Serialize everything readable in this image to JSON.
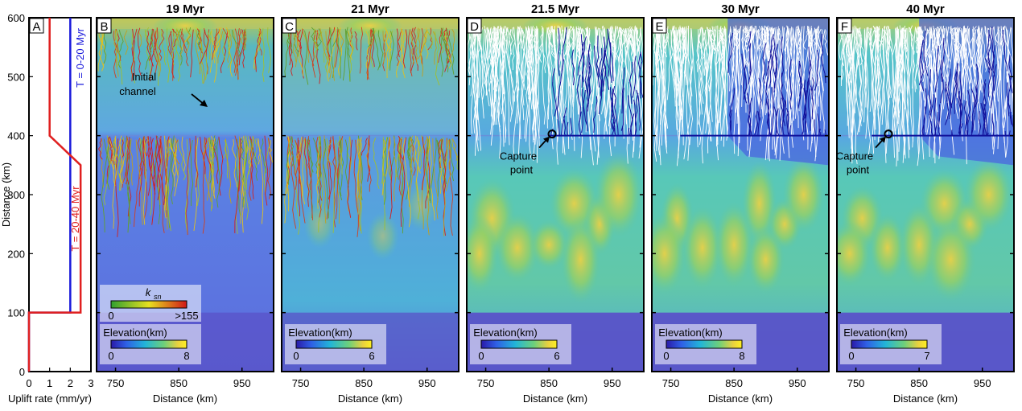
{
  "figure": {
    "panelA": {
      "letter": "A",
      "xlabel": "Uplift rate (mm/yr)",
      "ylabel": "Distance (km)",
      "xticks": [
        "0",
        "1",
        "2",
        "3"
      ],
      "yticks": [
        "0",
        "100",
        "200",
        "300",
        "400",
        "500",
        "600"
      ],
      "label_blue": "T = 0-20 Myr",
      "label_red": "T = 20-40 Myr",
      "colors": {
        "blue": "#1a1adb",
        "red": "#e02020"
      }
    },
    "map_xticks": [
      "750",
      "850",
      "950"
    ],
    "map_xlabel": "Distance (km)",
    "panels": [
      {
        "letter": "B",
        "title": "19 Myr",
        "colorbar_max": "8",
        "colorbar_min": "0"
      },
      {
        "letter": "C",
        "title": "21 Myr",
        "colorbar_max": "6",
        "colorbar_min": "0"
      },
      {
        "letter": "D",
        "title": "21.5 Myr",
        "colorbar_max": "6",
        "colorbar_min": "0"
      },
      {
        "letter": "E",
        "title": "30 Myr",
        "colorbar_max": "8",
        "colorbar_min": "0"
      },
      {
        "letter": "F",
        "title": "40 Myr",
        "colorbar_max": "7",
        "colorbar_min": "0"
      }
    ],
    "elevation_label": "Elevation(km)",
    "ksn": {
      "label": "k",
      "sub": "sn",
      "min": "0",
      "max": ">155"
    },
    "annotations": {
      "initial_channel_1": "Initial",
      "initial_channel_2": "channel",
      "capture_1": "Capture",
      "capture_2": "point"
    },
    "chart_data": {
      "type": "line",
      "title": "",
      "xlabel": "Uplift rate (mm/yr)",
      "ylabel": "Distance (km)",
      "xlim": [
        0,
        3
      ],
      "ylim": [
        0,
        600
      ],
      "series": [
        {
          "name": "T = 0-20 Myr",
          "x": [
            0,
            0,
            2,
            2,
            2
          ],
          "y": [
            0,
            100,
            100,
            400,
            600
          ]
        },
        {
          "name": "T = 20-40 Myr",
          "x": [
            0,
            0,
            2.5,
            2.5,
            1,
            1,
            1
          ],
          "y": [
            0,
            100,
            100,
            350,
            400,
            400,
            600
          ]
        }
      ]
    }
  }
}
